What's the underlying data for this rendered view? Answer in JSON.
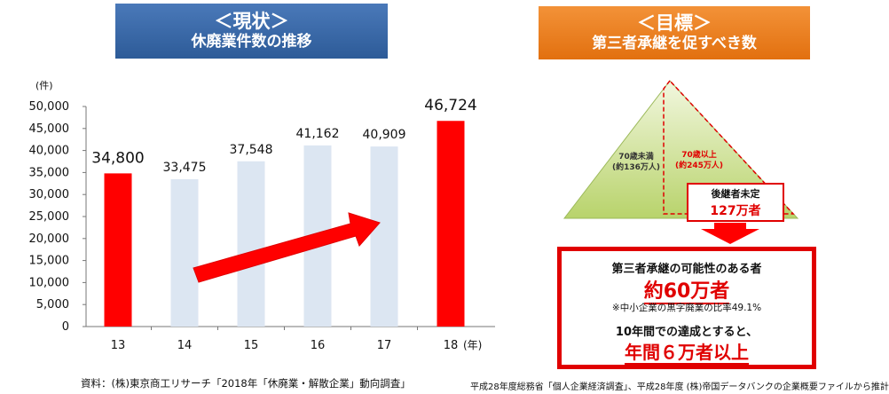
{
  "left_panel": {
    "title_line1": "＜現状＞",
    "title_line2": "休廃業件数の推移"
  },
  "right_panel": {
    "title_line1": "＜目標＞",
    "title_line2": "第三者承継を促すべき数",
    "pyramid": {
      "under70_line1": "70歳未満",
      "under70_line2": "(約136万人)",
      "over70_line1": "70歳以上",
      "over70_line2": "(約245万人)"
    },
    "no_successor_label": "後継者未定",
    "no_successor_value": "127万者",
    "goal": {
      "line1": "第三者承継の可能性のある者",
      "line2": "約60万者",
      "note": "※中小企業の黒字廃業の比率49.1%",
      "line3": "10年間での達成とすると、",
      "line4": "年間６万者以上"
    },
    "source": "平成28年度総務省「個人企業経済調査」、平成28年度 (株)帝国データバンクの企業概要ファイルから推計"
  },
  "chart_data": {
    "type": "bar",
    "categories": [
      "13",
      "14",
      "15",
      "16",
      "17",
      "18"
    ],
    "values": [
      34800,
      33475,
      37548,
      41162,
      40909,
      46724
    ],
    "value_labels": [
      "34,800",
      "33,475",
      "37,548",
      "41,162",
      "40,909",
      "46,724"
    ],
    "highlighted": [
      true,
      false,
      false,
      false,
      false,
      true
    ],
    "y_ticks": [
      0,
      5000,
      10000,
      15000,
      20000,
      25000,
      30000,
      35000,
      40000,
      45000,
      50000
    ],
    "y_tick_labels": [
      "0",
      "5,000",
      "10,000",
      "15,000",
      "20,000",
      "25,000",
      "30,000",
      "35,000",
      "40,000",
      "45,000",
      "50,000"
    ],
    "ylim": [
      0,
      50000
    ],
    "y_unit": "(件)",
    "x_unit": "(年)",
    "grid": false,
    "colors": {
      "highlight": "#ff0000",
      "normal": "#dce6f2",
      "trend_arrow": "#ff0000"
    },
    "source": "資料：(株)東京商工リサーチ「2018年「休廃業・解散企業」動向調査」"
  }
}
